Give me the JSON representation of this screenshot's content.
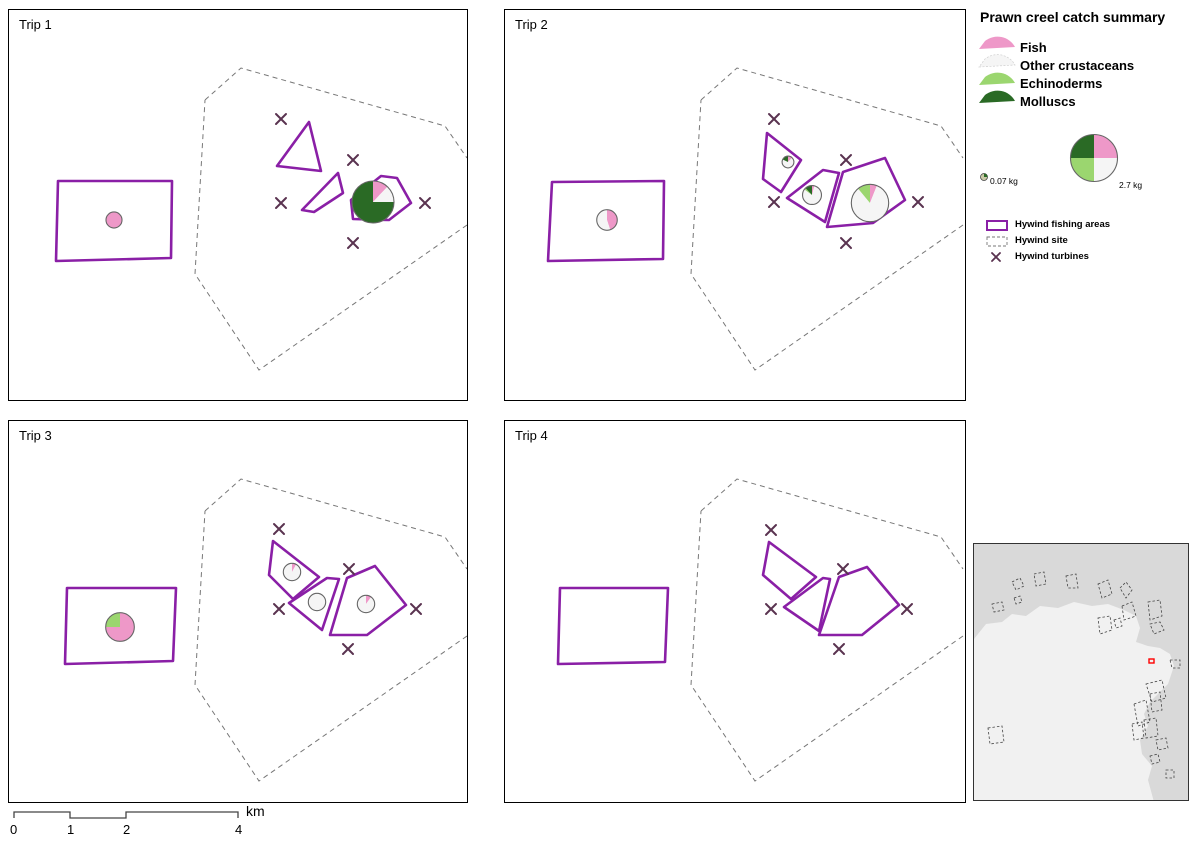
{
  "legend": {
    "title": "Prawn creel catch summary",
    "categories": [
      {
        "label": "Fish",
        "color": "#ee98c8"
      },
      {
        "label": "Other crustaceans",
        "color": "#f5f5f5"
      },
      {
        "label": "Echinoderms",
        "color": "#9bd66f"
      },
      {
        "label": "Molluscs",
        "color": "#2a6a25"
      }
    ],
    "size_min_label": "0.07 kg",
    "size_max_label": "2.7 kg",
    "fishing_areas_label": "Hywind fishing areas",
    "site_label": "Hywind site",
    "turbines_label": "Hywind turbines"
  },
  "panels": [
    {
      "label": "Trip 1",
      "pies": [
        {
          "name": "trip1-pie-west",
          "area": "west",
          "kg": 0.21,
          "shares": [
            1,
            0,
            0,
            0
          ]
        },
        {
          "name": "trip1-pie-east",
          "area": "east",
          "kg": 2.7,
          "shares": [
            0.12,
            0.13,
            0,
            0.75
          ]
        }
      ]
    },
    {
      "label": "Trip 2",
      "pies": [
        {
          "name": "trip2-pie-west",
          "area": "west",
          "kg": 0.44,
          "shares": [
            0.45,
            0.55,
            0,
            0
          ]
        },
        {
          "name": "trip2-pie-north",
          "area": "north",
          "kg": 0.07,
          "shares": [
            0.12,
            0.7,
            0,
            0.18
          ]
        },
        {
          "name": "trip2-pie-middle",
          "area": "middle",
          "kg": 0.35,
          "shares": [
            0.04,
            0.81,
            0.03,
            0.12
          ]
        },
        {
          "name": "trip2-pie-east",
          "area": "east",
          "kg": 2.05,
          "shares": [
            0.06,
            0.83,
            0.11,
            0
          ]
        }
      ]
    },
    {
      "label": "Trip 3",
      "pies": [
        {
          "name": "trip3-pie-west",
          "area": "west",
          "kg": 1.07,
          "shares": [
            0.75,
            0,
            0.25,
            0
          ]
        },
        {
          "name": "trip3-pie-north",
          "area": "north",
          "kg": 0.27,
          "shares": [
            0.08,
            0.92,
            0,
            0
          ]
        },
        {
          "name": "trip3-pie-middle",
          "area": "middle",
          "kg": 0.27,
          "shares": [
            0,
            1,
            0,
            0
          ]
        },
        {
          "name": "trip3-pie-east",
          "area": "east",
          "kg": 0.27,
          "shares": [
            0.1,
            0.9,
            0,
            0
          ]
        }
      ]
    },
    {
      "label": "Trip 4",
      "pies": []
    }
  ],
  "scalebar": {
    "ticks": [
      "0",
      "1",
      "2",
      "4"
    ],
    "unit": "km"
  },
  "colors": {
    "fishing_area": "#8a1fa6",
    "site_boundary": "#777777",
    "turbine": "#5a3350",
    "pie_outline": "#666666",
    "inset_land": "#f1f1f1",
    "inset_sea": "#d9d9d9",
    "inset_highlight": "#ff0000"
  }
}
